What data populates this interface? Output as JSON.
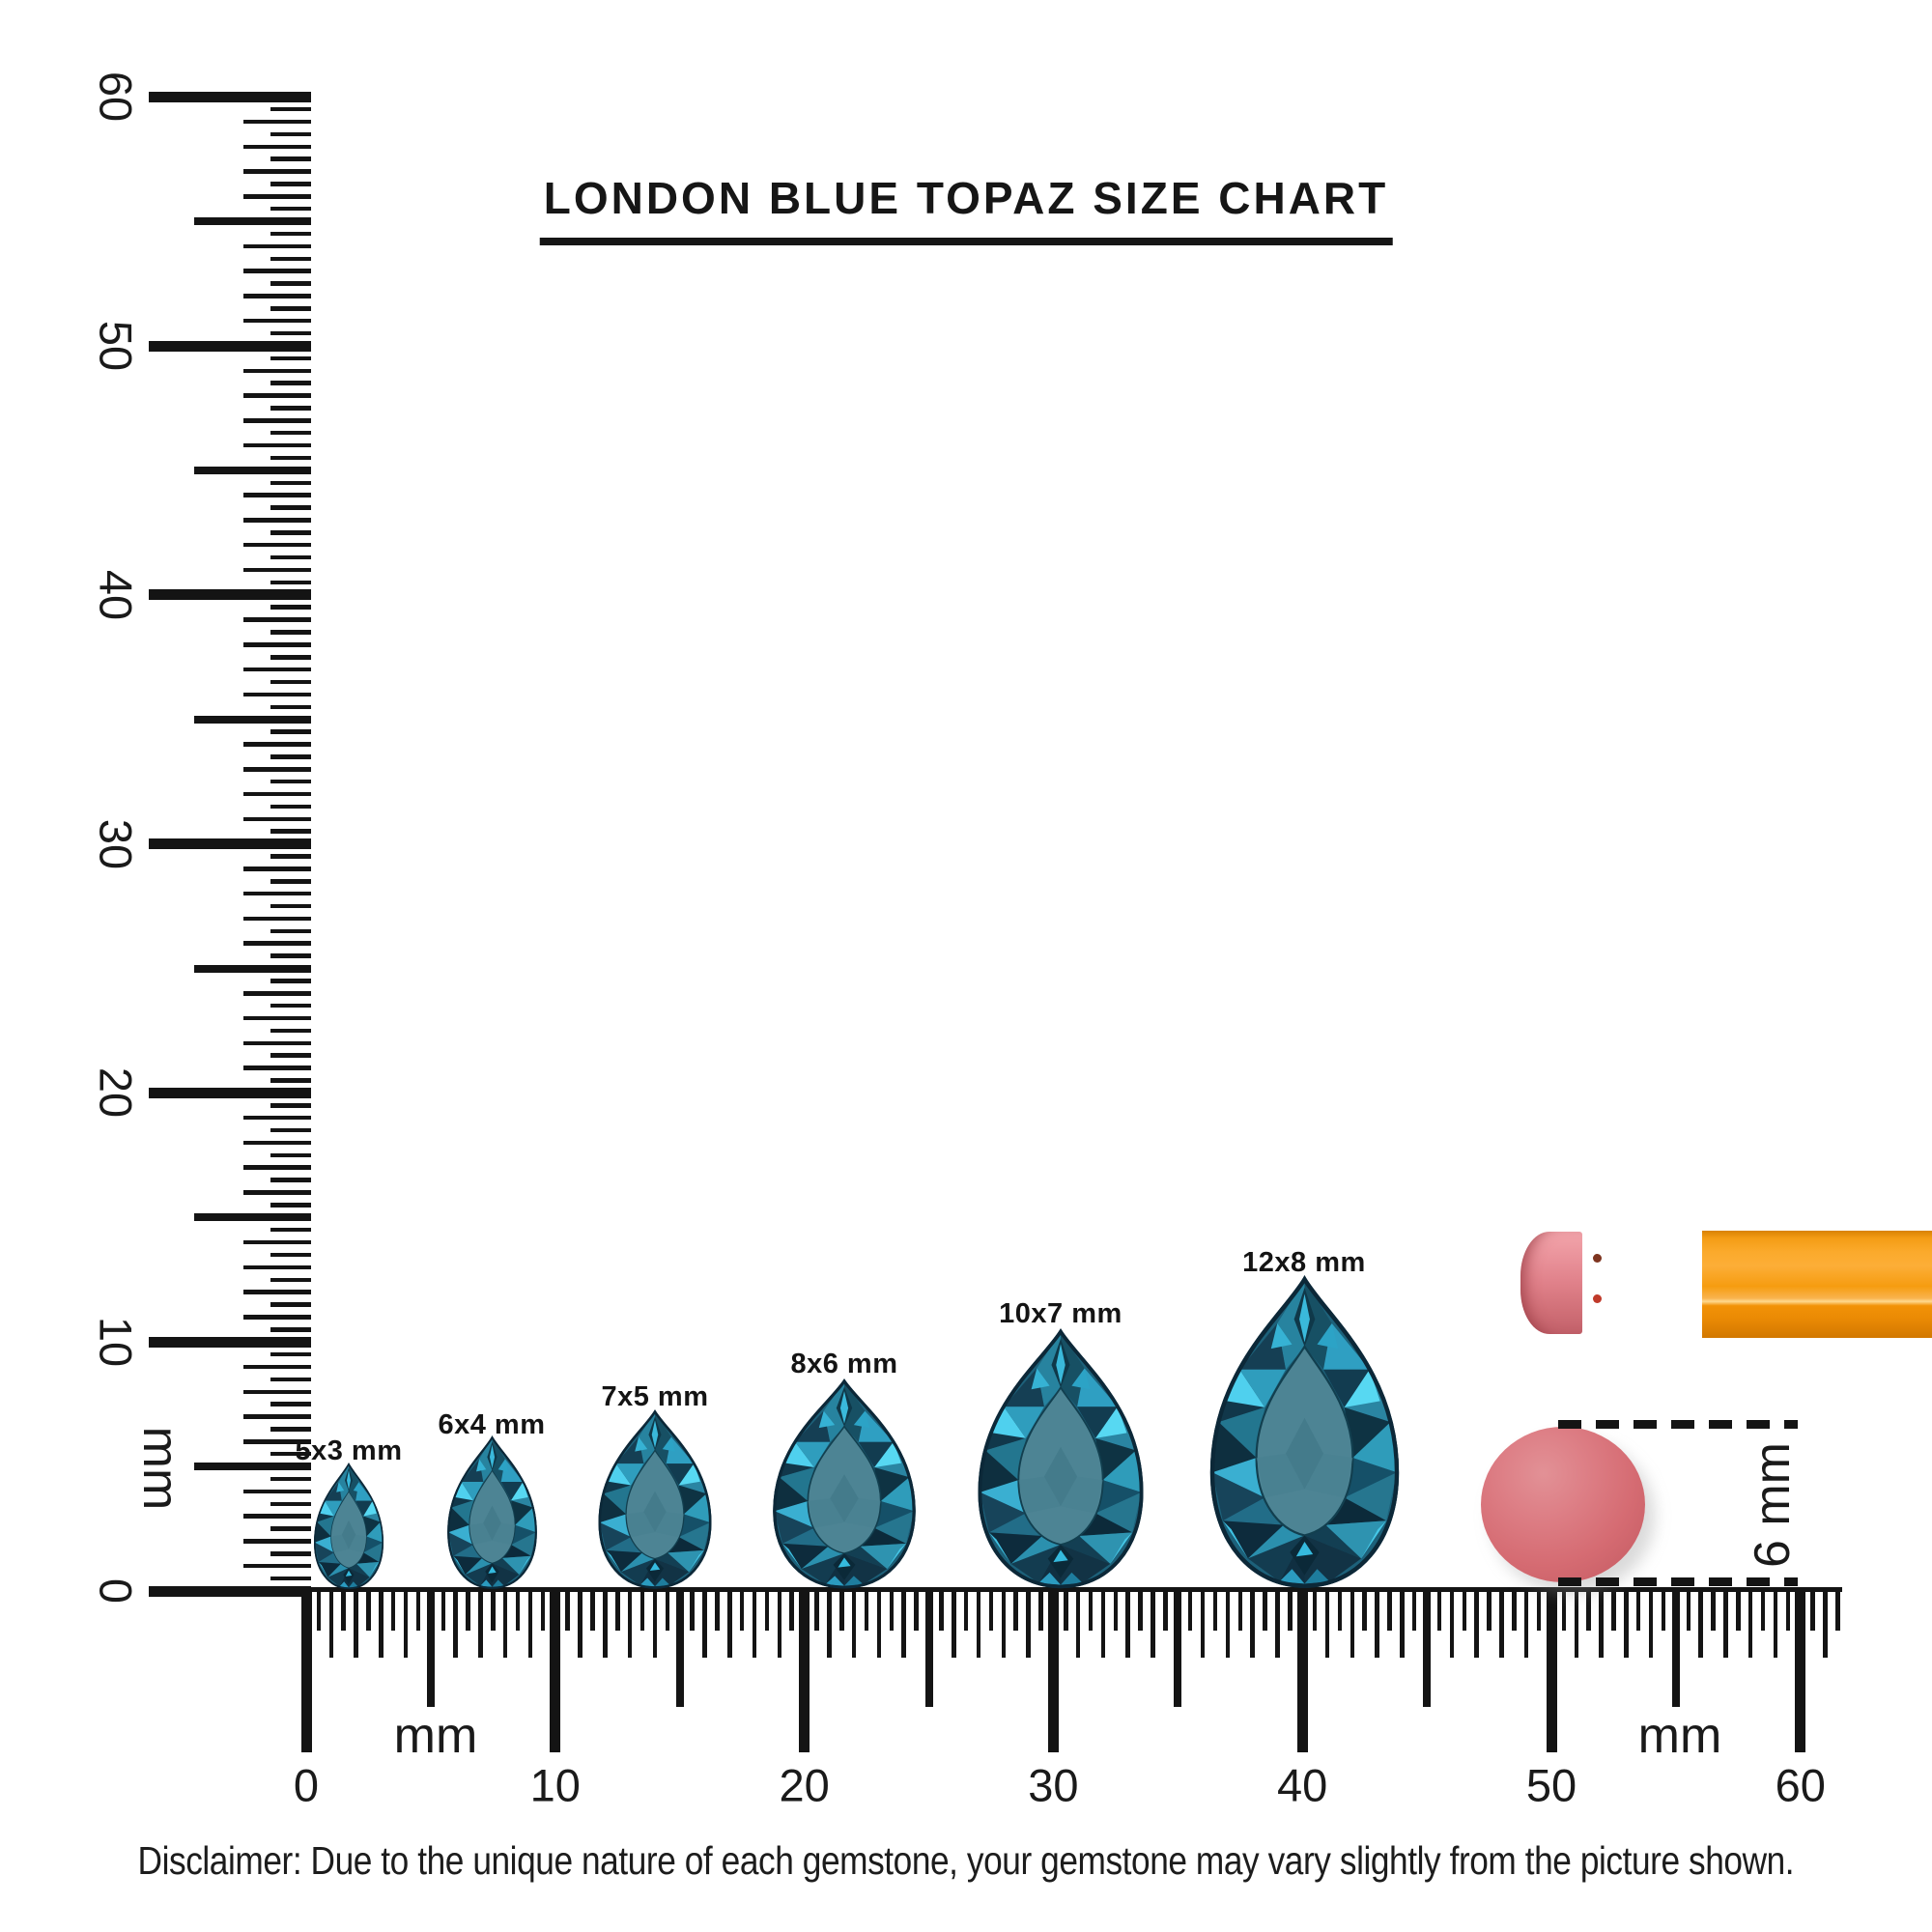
{
  "title": {
    "text": "LONDON BLUE TOPAZ SIZE CHART"
  },
  "rulers": {
    "unit_label": "mm",
    "vertical": {
      "numbers": [
        "0",
        "10",
        "20",
        "30",
        "40",
        "50",
        "60"
      ]
    },
    "horizontal": {
      "numbers": [
        "0",
        "10",
        "20",
        "30",
        "40",
        "50",
        "60"
      ]
    }
  },
  "gems": [
    {
      "label": "5x3 mm",
      "width_mm": 3,
      "height_mm": 5
    },
    {
      "label": "6x4 mm",
      "width_mm": 4,
      "height_mm": 6
    },
    {
      "label": "7x5 mm",
      "width_mm": 5,
      "height_mm": 7
    },
    {
      "label": "8x6 mm",
      "width_mm": 6,
      "height_mm": 8
    },
    {
      "label": "10x7 mm",
      "width_mm": 7,
      "height_mm": 10
    },
    {
      "label": "12x8 mm",
      "width_mm": 8,
      "height_mm": 12
    }
  ],
  "scale_reference": {
    "label": "6 mm"
  },
  "disclaimer": {
    "text": "Disclaimer: Due to the unique nature of each gemstone, your gemstone may vary slightly from the picture shown."
  },
  "colors": {
    "ink": "#141414",
    "topaz_teal": "#2b7f9c",
    "topaz_bright": "#35c2e6",
    "topaz_dark": "#0f3242",
    "eraser_pink": "#d56b72",
    "pencil_orange": "#f9a01b",
    "ferrule_gold": "#e9c787"
  }
}
